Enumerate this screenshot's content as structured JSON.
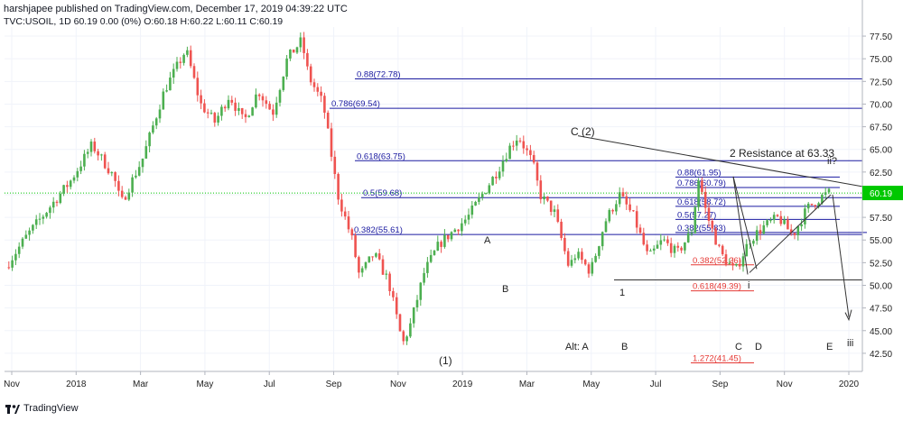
{
  "header": {
    "publisher": "harshjapee published on TradingView.com, December 17, 2019 04:39:22 UTC",
    "symbol_line": "TVC:USOIL, 1D 60.19 0.00 (0%) O:60.18 H:60.22 L:60.11 C:60.19"
  },
  "brand": {
    "name": "TradingView",
    "icon": "tradingview-logo-icon"
  },
  "chart_data": {
    "type": "candlestick",
    "symbol": "TVC:USOIL",
    "interval": "1D",
    "last_price": 60.19,
    "last_price_label": "60.19",
    "ylim": [
      40.5,
      78.5
    ],
    "y_ticks": [
      "42.50",
      "45.00",
      "47.50",
      "50.00",
      "52.50",
      "55.00",
      "57.50",
      "60.00",
      "62.50",
      "65.00",
      "67.50",
      "70.00",
      "72.50",
      "75.00",
      "77.50"
    ],
    "x_ticks": [
      "Nov",
      "2018",
      "Mar",
      "May",
      "Jul",
      "Sep",
      "Nov",
      "2019",
      "Mar",
      "May",
      "Jul",
      "Sep",
      "Nov",
      "2020"
    ],
    "colors": {
      "up": "#4caf50",
      "down": "#ef5350",
      "fib": "#1a1aa0",
      "fib_red": "#e53935",
      "trend": "#333333",
      "last_price": "#00c800"
    },
    "price_path": [
      [
        0,
        52.0
      ],
      [
        3,
        55.5
      ],
      [
        6,
        58.5
      ],
      [
        9,
        61.5
      ],
      [
        12,
        65.5
      ],
      [
        15,
        62.0
      ],
      [
        16,
        59.0
      ],
      [
        19,
        64.0
      ],
      [
        22,
        71.5
      ],
      [
        25,
        76.0
      ],
      [
        27,
        70.0
      ],
      [
        29,
        68.0
      ],
      [
        31,
        71.0
      ],
      [
        33,
        68.0
      ],
      [
        35,
        71.5
      ],
      [
        37,
        69.0
      ],
      [
        39,
        75.0
      ],
      [
        41,
        77.0
      ],
      [
        42,
        73.0
      ],
      [
        44,
        70.0
      ],
      [
        46,
        60.0
      ],
      [
        48,
        55.0
      ],
      [
        49,
        51.0
      ],
      [
        51,
        53.5
      ],
      [
        53,
        50.5
      ],
      [
        54,
        47.0
      ],
      [
        55,
        43.5
      ],
      [
        56,
        45.5
      ],
      [
        58,
        51.5
      ],
      [
        60,
        54.5
      ],
      [
        62,
        56.0
      ],
      [
        64,
        57.5
      ],
      [
        66,
        60.0
      ],
      [
        68,
        62.5
      ],
      [
        70,
        65.5
      ],
      [
        71,
        66.5
      ],
      [
        73,
        63.5
      ],
      [
        74,
        60.0
      ],
      [
        76,
        58.0
      ],
      [
        78,
        52.0
      ],
      [
        79,
        53.5
      ],
      [
        81,
        51.5
      ],
      [
        83,
        57.0
      ],
      [
        85,
        60.0
      ],
      [
        87,
        57.5
      ],
      [
        89,
        53.0
      ],
      [
        91,
        55.0
      ],
      [
        93,
        53.5
      ],
      [
        95,
        56.0
      ],
      [
        96,
        62.0
      ],
      [
        97,
        58.0
      ],
      [
        99,
        53.5
      ],
      [
        101,
        51.5
      ],
      [
        103,
        55.0
      ],
      [
        105,
        56.5
      ],
      [
        107,
        57.5
      ],
      [
        109,
        55.5
      ],
      [
        111,
        58.5
      ],
      [
        113,
        59.8
      ],
      [
        114,
        60.2
      ]
    ],
    "levels": [
      {
        "label": "0.88(72.78)",
        "value": 72.78,
        "color": "fib"
      },
      {
        "label": "0.786(69.54)",
        "value": 69.54,
        "color": "fib"
      },
      {
        "label": "0.618(63.75)",
        "value": 63.75,
        "color": "fib"
      },
      {
        "label": "0.5(59.68)",
        "value": 59.68,
        "color": "fib"
      },
      {
        "label": "0.382(55.61)",
        "value": 55.61,
        "color": "fib"
      },
      {
        "label": "0.88(61.95)",
        "value": 61.95,
        "color": "fib"
      },
      {
        "label": "0.786(60.79)",
        "value": 60.79,
        "color": "fib"
      },
      {
        "label": "0.618(58.72)",
        "value": 58.72,
        "color": "fib"
      },
      {
        "label": "0.5(57.27)",
        "value": 57.27,
        "color": "fib"
      },
      {
        "label": "0.382(55.83)",
        "value": 55.83,
        "color": "fib"
      },
      {
        "label": "0.382(52.26)",
        "value": 52.26,
        "color": "fib_red"
      },
      {
        "label": "0.618(49.39)",
        "value": 49.39,
        "color": "fib_red"
      },
      {
        "label": "1.272(41.45)",
        "value": 41.45,
        "color": "fib_red"
      }
    ],
    "annotations": [
      "C (2)",
      "2 Resistance at 63.33",
      "A",
      "B",
      "(1)",
      "1",
      "i",
      "ii?",
      "iii",
      "Alt: A",
      "B",
      "C",
      "D",
      "E"
    ]
  }
}
